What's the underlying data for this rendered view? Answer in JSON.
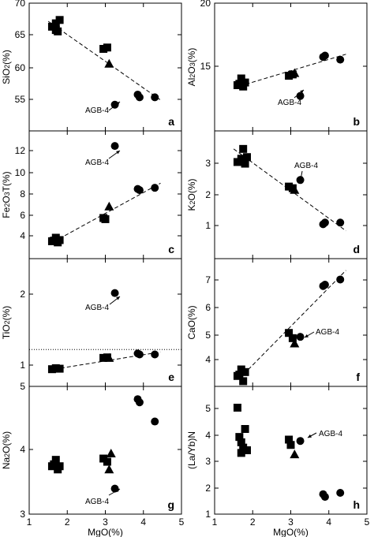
{
  "chart_data": [
    {
      "panel": "a",
      "type": "scatter",
      "ylabel": "SiO2(%)",
      "ylim": [
        51,
        70
      ],
      "yticks": [
        "55",
        "60",
        "65",
        "70"
      ],
      "xlim": [
        1,
        5
      ],
      "annotation": "AGB-4",
      "trend": {
        "from": [
          1.5,
          67.3
        ],
        "to": [
          4.45,
          55.6
        ],
        "style": "dashed"
      },
      "series": [
        {
          "marker": "square",
          "points": [
            [
              1.6,
              66.5
            ],
            [
              1.7,
              66.0
            ],
            [
              1.7,
              67.0
            ],
            [
              1.8,
              67.5
            ],
            [
              1.75,
              65.8
            ],
            [
              2.95,
              63.2
            ],
            [
              3.05,
              63.4
            ]
          ]
        },
        {
          "marker": "triangle",
          "points": [
            [
              3.1,
              61.0
            ]
          ]
        },
        {
          "marker": "circle",
          "points": [
            [
              3.25,
              54.9
            ],
            [
              3.85,
              56.4
            ],
            [
              3.9,
              56.0
            ],
            [
              4.3,
              56.0
            ]
          ]
        }
      ]
    },
    {
      "panel": "b",
      "type": "scatter",
      "ylabel": "Al2O3(%)",
      "ylim": [
        10.5,
        20
      ],
      "yticks": [
        "15",
        "20"
      ],
      "xlim": [
        1,
        5
      ],
      "annotation": "AGB-4",
      "trend": {
        "from": [
          1.5,
          13.7
        ],
        "to": [
          4.45,
          16.2
        ],
        "style": "dashed"
      },
      "series": [
        {
          "marker": "square",
          "points": [
            [
              1.6,
              13.9
            ],
            [
              1.7,
              14.4
            ],
            [
              1.75,
              13.8
            ],
            [
              1.8,
              14.1
            ],
            [
              1.65,
              14.0
            ],
            [
              2.95,
              14.6
            ],
            [
              3.05,
              14.7
            ]
          ]
        },
        {
          "marker": "triangle",
          "points": [
            [
              3.1,
              14.8
            ]
          ]
        },
        {
          "marker": "circle",
          "points": [
            [
              3.25,
              13.1
            ],
            [
              3.85,
              16.0
            ],
            [
              3.9,
              16.1
            ],
            [
              4.3,
              15.8
            ]
          ]
        }
      ]
    },
    {
      "panel": "c",
      "type": "scatter",
      "ylabel": "Fe2O3T(%)",
      "ylim": [
        2.5,
        13.5
      ],
      "yticks": [
        "4",
        "6",
        "8",
        "10",
        "12"
      ],
      "xlim": [
        1,
        5
      ],
      "annotation": "AGB-4",
      "trend": {
        "from": [
          1.5,
          3.7
        ],
        "to": [
          4.45,
          9.0
        ],
        "style": "dashed"
      },
      "series": [
        {
          "marker": "square",
          "points": [
            [
              1.6,
              4.0
            ],
            [
              1.7,
              4.3
            ],
            [
              1.75,
              3.9
            ],
            [
              1.8,
              4.1
            ],
            [
              1.65,
              4.05
            ],
            [
              2.95,
              6.0
            ],
            [
              3.0,
              5.9
            ]
          ]
        },
        {
          "marker": "triangle",
          "points": [
            [
              3.1,
              7.0
            ]
          ]
        },
        {
          "marker": "circle",
          "points": [
            [
              3.25,
              12.2
            ],
            [
              3.85,
              8.5
            ],
            [
              3.9,
              8.4
            ],
            [
              4.3,
              8.6
            ]
          ]
        }
      ]
    },
    {
      "panel": "d",
      "type": "scatter",
      "ylabel": "K2O(%)",
      "ylim": [
        0,
        3.9
      ],
      "yticks": [
        "1",
        "2",
        "3"
      ],
      "xlim": [
        1,
        5
      ],
      "annotation": "AGB-4",
      "trend": {
        "from": [
          1.5,
          3.35
        ],
        "to": [
          4.45,
          0.85
        ],
        "style": "dashed"
      },
      "series": [
        {
          "marker": "square",
          "points": [
            [
              1.6,
              2.95
            ],
            [
              1.7,
              3.05
            ],
            [
              1.75,
              3.35
            ],
            [
              1.8,
              2.9
            ],
            [
              1.85,
              3.1
            ],
            [
              2.95,
              2.2
            ],
            [
              3.05,
              2.15
            ]
          ]
        },
        {
          "marker": "triangle",
          "points": [
            [
              3.1,
              2.1
            ]
          ]
        },
        {
          "marker": "circle",
          "points": [
            [
              3.25,
              2.4
            ],
            [
              3.85,
              1.05
            ],
            [
              3.9,
              1.1
            ],
            [
              4.3,
              1.1
            ]
          ]
        }
      ]
    },
    {
      "panel": "e",
      "type": "scatter",
      "ylabel": "TiO2(%)",
      "ylim": [
        0.25,
        2.85
      ],
      "yticks": [
        "1",
        "2"
      ],
      "xlim": [
        1,
        5
      ],
      "annotation": "AGB-4",
      "reference_line": {
        "y": 1,
        "style": "dotted"
      },
      "trend": {
        "from": [
          1.5,
          0.58
        ],
        "to": [
          4.45,
          0.95
        ],
        "style": "dashed"
      },
      "series": [
        {
          "marker": "square",
          "points": [
            [
              1.6,
              0.6
            ],
            [
              1.7,
              0.62
            ],
            [
              1.8,
              0.61
            ],
            [
              2.95,
              0.83
            ],
            [
              3.05,
              0.84
            ]
          ]
        },
        {
          "marker": "triangle",
          "points": [
            [
              3.1,
              0.83
            ]
          ]
        },
        {
          "marker": "circle",
          "points": [
            [
              3.25,
              2.15
            ],
            [
              3.85,
              0.92
            ],
            [
              3.9,
              0.9
            ],
            [
              4.3,
              0.9
            ]
          ]
        }
      ]
    },
    {
      "panel": "f",
      "type": "scatter",
      "ylabel": "CaO(%)",
      "ylim": [
        3,
        7.9
      ],
      "yticks": [
        "4",
        "5",
        "6",
        "7"
      ],
      "xlim": [
        1,
        5
      ],
      "annotation": "AGB-4",
      "trend": {
        "from": [
          1.65,
          3.3
        ],
        "to": [
          4.45,
          7.45
        ],
        "style": "dashed"
      },
      "series": [
        {
          "marker": "square",
          "points": [
            [
              1.6,
              3.4
            ],
            [
              1.7,
              3.65
            ],
            [
              1.75,
              3.2
            ],
            [
              1.8,
              3.55
            ],
            [
              1.65,
              3.45
            ],
            [
              2.95,
              5.05
            ],
            [
              3.05,
              4.85
            ]
          ]
        },
        {
          "marker": "triangle",
          "points": [
            [
              3.1,
              4.65
            ]
          ]
        },
        {
          "marker": "circle",
          "points": [
            [
              3.25,
              4.9
            ],
            [
              3.85,
              6.85
            ],
            [
              3.9,
              6.9
            ],
            [
              4.3,
              7.1
            ]
          ]
        }
      ]
    },
    {
      "panel": "g",
      "type": "scatter",
      "ylabel": "Na2O(%)",
      "ylim": [
        3,
        5
      ],
      "yticks": [
        "3",
        "4",
        "5"
      ],
      "xlim": [
        1,
        5
      ],
      "xticks": [
        "1",
        "2",
        "3",
        "4",
        "5"
      ],
      "xlabel": "MgO(%)",
      "annotation": "AGB-4",
      "series": [
        {
          "marker": "square",
          "points": [
            [
              1.6,
              3.75
            ],
            [
              1.7,
              3.85
            ],
            [
              1.75,
              3.7
            ],
            [
              1.8,
              3.75
            ],
            [
              1.65,
              3.78
            ],
            [
              2.95,
              3.87
            ],
            [
              3.05,
              3.82
            ]
          ]
        },
        {
          "marker": "triangle",
          "points": [
            [
              3.1,
              3.7
            ],
            [
              3.15,
              3.95
            ]
          ]
        },
        {
          "marker": "circle",
          "points": [
            [
              3.25,
              3.4
            ],
            [
              3.85,
              4.8
            ],
            [
              3.9,
              4.75
            ],
            [
              4.3,
              4.45
            ]
          ]
        }
      ]
    },
    {
      "panel": "h",
      "type": "scatter",
      "ylabel": "(La/Yb)N",
      "ylim": [
        1.2,
        6
      ],
      "yticks": [
        "1",
        "2",
        "3",
        "4",
        "5"
      ],
      "xlim": [
        1,
        5
      ],
      "xticks": [
        "1",
        "2",
        "3",
        "4",
        "5"
      ],
      "xlabel": "MgO(%)",
      "annotation": "AGB-4",
      "series": [
        {
          "marker": "square",
          "points": [
            [
              1.6,
              5.2
            ],
            [
              1.65,
              4.1
            ],
            [
              1.7,
              3.9
            ],
            [
              1.7,
              3.5
            ],
            [
              1.75,
              3.7
            ],
            [
              1.8,
              4.4
            ],
            [
              1.85,
              3.6
            ],
            [
              2.95,
              4.0
            ],
            [
              3.0,
              3.8
            ]
          ]
        },
        {
          "marker": "triangle",
          "points": [
            [
              3.1,
              3.45
            ]
          ]
        },
        {
          "marker": "circle",
          "points": [
            [
              3.25,
              3.95
            ],
            [
              3.85,
              1.95
            ],
            [
              3.9,
              1.85
            ],
            [
              4.3,
              2.0
            ]
          ]
        }
      ]
    }
  ]
}
